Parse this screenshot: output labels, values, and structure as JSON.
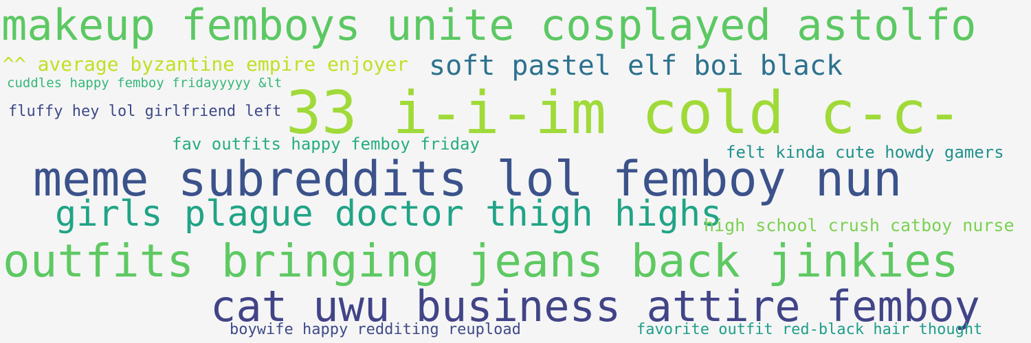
{
  "words": [
    {
      "text": "makeup femboys unite cosplayed astolfo",
      "color": "#5cc863"
    },
    {
      "text": "^^ average byzantine empire enjoyer",
      "color": "#c2df23"
    },
    {
      "text": "soft pastel elf boi black",
      "color": "#2c728e"
    },
    {
      "text": "cuddles happy femboy fridayyyyy &lt",
      "color": "#35b779"
    },
    {
      "text": "fluffy  hey lol girlfriend left",
      "color": "#3e4989"
    },
    {
      "text": "33 i-i-im cold c-c-",
      "color": "#a0da39"
    },
    {
      "text": "fav outfits happy femboy friday",
      "color": "#27ad81"
    },
    {
      "text": "felt kinda cute howdy gamers",
      "color": "#21918c"
    },
    {
      "text": "meme subreddits lol femboy nun",
      "color": "#3b528b"
    },
    {
      "text": "girls plague doctor thigh highs",
      "color": "#20a486"
    },
    {
      "text": "high school crush catboy nurse",
      "color": "#7ad151"
    },
    {
      "text": "outfits bringing jeans back jinkies",
      "color": "#5ec962"
    },
    {
      "text": "cat uwu business attire femboy",
      "color": "#414487"
    },
    {
      "text": "boywife happy redditing reupload",
      "color": "#3e4a89"
    },
    {
      "text": "favorite outfit red-black hair thought",
      "color": "#1f9e89"
    }
  ]
}
